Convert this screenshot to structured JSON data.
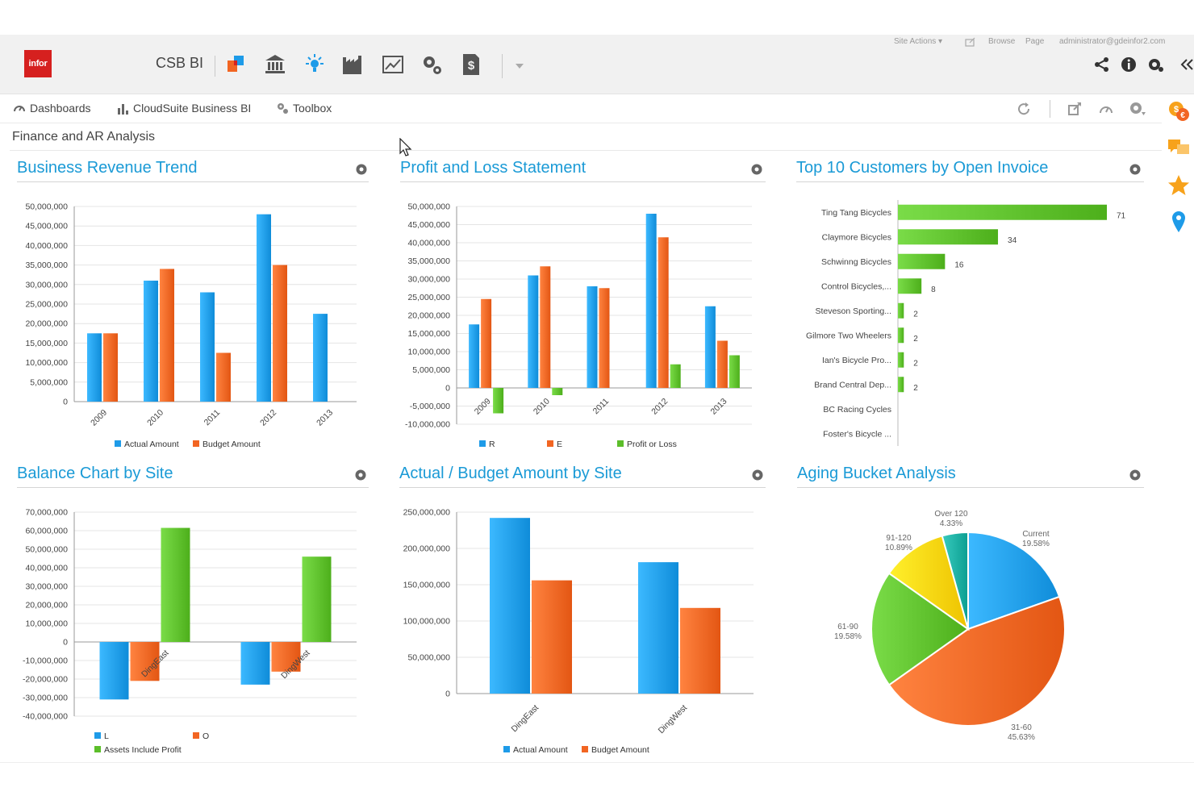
{
  "app": {
    "logo_text": "infor",
    "title": "CSB BI",
    "site_actions": "Site Actions",
    "browse": "Browse",
    "page": "Page",
    "user": "administrator@gdeinfor2.com"
  },
  "nav": {
    "dashboards": "Dashboards",
    "business_bi": "CloudSuite Business BI",
    "toolbox": "Toolbox"
  },
  "page_title": "Finance and AR Analysis",
  "colors": {
    "blue": "#1e9be8",
    "orange": "#f26522",
    "green": "#5cbe2a",
    "yellow": "#fdd20e",
    "teal": "#1aada0",
    "title_blue": "#1a9ad6"
  },
  "panels": {
    "revenue_title": "Business Revenue Trend",
    "pl_title": "Profit and Loss Statement",
    "customers_title": "Top 10 Customers by Open Invoice",
    "balance_title": "Balance Chart by Site",
    "budget_title": "Actual / Budget Amount by Site",
    "aging_title": "Aging Bucket Analysis"
  },
  "chart_data": [
    {
      "id": "revenue",
      "type": "bar",
      "title": "Business Revenue Trend",
      "categories": [
        "2009",
        "2010",
        "2011",
        "2012",
        "2013"
      ],
      "series": [
        {
          "name": "Actual Amount",
          "color": "#1e9be8",
          "values": [
            17500000,
            31000000,
            28000000,
            48000000,
            22500000
          ]
        },
        {
          "name": "Budget Amount",
          "color": "#f26522",
          "values": [
            17500000,
            34000000,
            12500000,
            35000000,
            null
          ]
        }
      ],
      "ylim": [
        0,
        50000000
      ],
      "yticks": [
        "50,000,000",
        "45,000,000",
        "40,000,000",
        "35,000,000",
        "30,000,000",
        "25,000,000",
        "20,000,000",
        "15,000,000",
        "10,000,000",
        "5,000,000",
        "0"
      ],
      "legend": "bottom"
    },
    {
      "id": "pl",
      "type": "bar",
      "title": "Profit and Loss Statement",
      "categories": [
        "2009",
        "2010",
        "2011",
        "2012",
        "2013"
      ],
      "series": [
        {
          "name": "R",
          "color": "#1e9be8",
          "values": [
            17500000,
            31000000,
            28000000,
            48000000,
            22500000
          ]
        },
        {
          "name": "E",
          "color": "#f26522",
          "values": [
            24500000,
            33500000,
            27500000,
            41500000,
            13000000
          ]
        },
        {
          "name": "Profit or Loss",
          "color": "#5cbe2a",
          "values": [
            -7000000,
            -2000000,
            null,
            6500000,
            9000000
          ]
        }
      ],
      "ylim": [
        -10000000,
        50000000
      ],
      "yticks": [
        "50,000,000",
        "45,000,000",
        "40,000,000",
        "35,000,000",
        "30,000,000",
        "25,000,000",
        "20,000,000",
        "15,000,000",
        "10,000,000",
        "5,000,000",
        "0",
        "-5,000,000",
        "-10,000,000"
      ],
      "legend": "bottom"
    },
    {
      "id": "customers",
      "type": "bar",
      "orientation": "horizontal",
      "title": "Top 10 Customers by Open Invoice",
      "categories": [
        "Ting Tang Bicycles",
        "Claymore Bicycles",
        "Schwinng Bicycles",
        "Control Bicycles,...",
        "Steveson Sporting...",
        "Gilmore Two Wheelers",
        "Ian's Bicycle Pro...",
        "Brand Central Dep...",
        "BC Racing Cycles",
        "Foster's Bicycle ..."
      ],
      "values": [
        71,
        34,
        16,
        8,
        2,
        2,
        2,
        2,
        null,
        null
      ],
      "value_labels": [
        "71",
        "34",
        "16",
        "8",
        "2",
        "2",
        "2",
        "2",
        "",
        ""
      ],
      "xlim": [
        0,
        71
      ]
    },
    {
      "id": "balance",
      "type": "bar",
      "title": "Balance Chart by Site",
      "categories": [
        "DingEast",
        "DingWest"
      ],
      "series": [
        {
          "name": "L",
          "color": "#1e9be8",
          "values": [
            -31000000,
            -23000000
          ]
        },
        {
          "name": "O",
          "color": "#f26522",
          "values": [
            -21000000,
            -16000000
          ]
        },
        {
          "name": "Assets Include Profit",
          "color": "#5cbe2a",
          "values": [
            61500000,
            46000000
          ]
        }
      ],
      "ylim": [
        -40000000,
        70000000
      ],
      "yticks": [
        "70,000,000",
        "60,000,000",
        "50,000,000",
        "40,000,000",
        "30,000,000",
        "20,000,000",
        "10,000,000",
        "0",
        "-10,000,000",
        "-20,000,000",
        "-30,000,000",
        "-40,000,000"
      ],
      "legend": "bottom"
    },
    {
      "id": "budget",
      "type": "bar",
      "title": "Actual / Budget Amount by Site",
      "categories": [
        "DingEast",
        "DingWest"
      ],
      "series": [
        {
          "name": "Actual Amount",
          "color": "#1e9be8",
          "values": [
            242000000,
            181000000
          ]
        },
        {
          "name": "Budget Amount",
          "color": "#f26522",
          "values": [
            156000000,
            118000000
          ]
        }
      ],
      "ylim": [
        0,
        250000000
      ],
      "yticks": [
        "250,000,000",
        "200,000,000",
        "150,000,000",
        "100,000,000",
        "50,000,000",
        "0"
      ],
      "legend": "bottom"
    },
    {
      "id": "aging",
      "type": "pie",
      "title": "Aging Bucket Analysis",
      "slices": [
        {
          "name": "Current",
          "pct_label": "19.58%",
          "value": 19.58,
          "color": "#1e9be8"
        },
        {
          "name": "31-60",
          "pct_label": "45.63%",
          "value": 45.63,
          "color": "#f26522"
        },
        {
          "name": "61-90",
          "pct_label": "19.58%",
          "value": 19.58,
          "color": "#5cbe2a"
        },
        {
          "name": "91-120",
          "pct_label": "10.89%",
          "value": 10.89,
          "color": "#fdd20e"
        },
        {
          "name": "Over 120",
          "pct_label": "4.33%",
          "value": 4.33,
          "color": "#1aada0"
        }
      ]
    }
  ]
}
